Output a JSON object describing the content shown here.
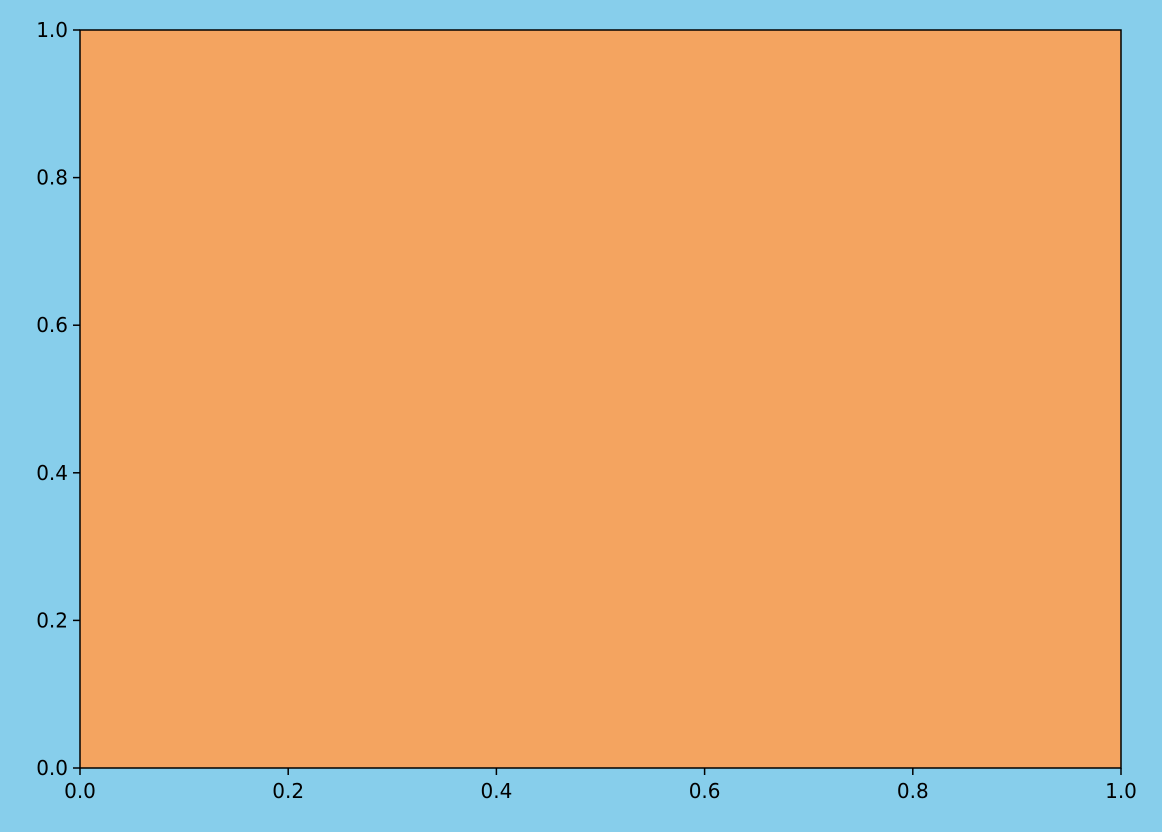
{
  "colors": {
    "figure_background": "#87CEEB",
    "plot_background": "#F4A460",
    "axis_color": "#000000",
    "text_color": "#000000"
  },
  "chart_data": {
    "type": "scatter",
    "title": "",
    "xlabel": "",
    "ylabel": "",
    "xlim": [
      0.0,
      1.0
    ],
    "ylim": [
      0.0,
      1.0
    ],
    "x_ticks": [
      0.0,
      0.2,
      0.4,
      0.6,
      0.8,
      1.0
    ],
    "x_tick_labels": [
      "0.0",
      "0.2",
      "0.4",
      "0.6",
      "0.8",
      "1.0"
    ],
    "y_ticks": [
      0.0,
      0.2,
      0.4,
      0.6,
      0.8,
      1.0
    ],
    "y_tick_labels": [
      "0.0",
      "0.2",
      "0.4",
      "0.6",
      "0.8",
      "1.0"
    ],
    "grid": false,
    "series": []
  }
}
